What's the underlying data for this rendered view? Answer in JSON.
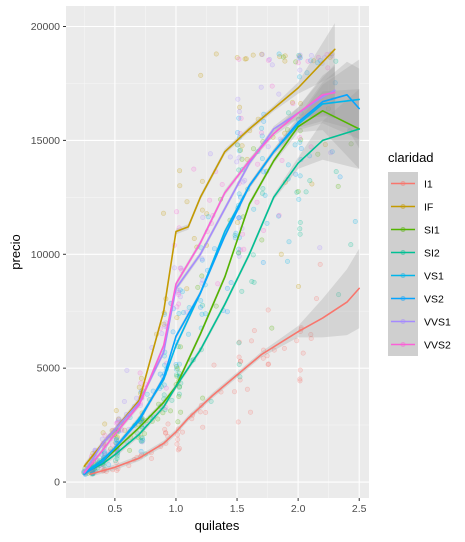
{
  "chart_data": {
    "type": "scatter",
    "title": "",
    "xlabel": "quilates",
    "ylabel": "precio",
    "xlim": [
      0.1,
      2.58
    ],
    "ylim": [
      -700,
      20900
    ],
    "x_ticks": [
      0.5,
      1.0,
      1.5,
      2.0,
      2.5
    ],
    "x_tick_labels": [
      "0.5",
      "1.0",
      "1.5",
      "2.0",
      "2.5"
    ],
    "y_ticks": [
      0,
      5000,
      10000,
      15000,
      20000
    ],
    "y_tick_labels": [
      "0",
      "5000",
      "10000",
      "15000",
      "20000"
    ],
    "grid": true,
    "panel_background": "#ebebeb",
    "legend_position": "right",
    "legend_title": "claridad",
    "overlay": "loess smooth lines with grey confidence bands over semi-transparent scatter points",
    "series": [
      {
        "name": "I1",
        "color": "#F8766D",
        "values": [
          [
            0.3,
            350
          ],
          [
            0.5,
            650
          ],
          [
            0.7,
            1050
          ],
          [
            0.9,
            1700
          ],
          [
            1.0,
            2200
          ],
          [
            1.1,
            2800
          ],
          [
            1.3,
            3800
          ],
          [
            1.5,
            4700
          ],
          [
            1.7,
            5600
          ],
          [
            2.0,
            6600
          ],
          [
            2.2,
            7200
          ],
          [
            2.4,
            7900
          ],
          [
            2.5,
            8500
          ]
        ]
      },
      {
        "name": "IF",
        "color": "#C49A00",
        "values": [
          [
            0.25,
            700
          ],
          [
            0.4,
            1700
          ],
          [
            0.5,
            2300
          ],
          [
            0.7,
            3600
          ],
          [
            0.9,
            7500
          ],
          [
            1.0,
            11000
          ],
          [
            1.1,
            11200
          ],
          [
            1.2,
            12500
          ],
          [
            1.4,
            14500
          ],
          [
            1.6,
            15500
          ],
          [
            1.8,
            16400
          ],
          [
            2.0,
            17300
          ],
          [
            2.3,
            19000
          ]
        ]
      },
      {
        "name": "SI1",
        "color": "#53B400",
        "values": [
          [
            0.25,
            400
          ],
          [
            0.4,
            900
          ],
          [
            0.5,
            1400
          ],
          [
            0.7,
            2400
          ],
          [
            0.9,
            3500
          ],
          [
            1.0,
            4200
          ],
          [
            1.2,
            6500
          ],
          [
            1.4,
            9000
          ],
          [
            1.6,
            12200
          ],
          [
            1.8,
            14100
          ],
          [
            2.0,
            15600
          ],
          [
            2.2,
            16300
          ],
          [
            2.5,
            15500
          ]
        ]
      },
      {
        "name": "SI2",
        "color": "#00C094",
        "values": [
          [
            0.25,
            400
          ],
          [
            0.4,
            800
          ],
          [
            0.5,
            1200
          ],
          [
            0.7,
            2100
          ],
          [
            0.9,
            3300
          ],
          [
            1.0,
            4200
          ],
          [
            1.2,
            5800
          ],
          [
            1.4,
            7800
          ],
          [
            1.6,
            10000
          ],
          [
            1.8,
            12500
          ],
          [
            2.0,
            14000
          ],
          [
            2.2,
            15000
          ],
          [
            2.5,
            15500
          ]
        ]
      },
      {
        "name": "VS1",
        "color": "#00B6EB",
        "values": [
          [
            0.25,
            400
          ],
          [
            0.4,
            1000
          ],
          [
            0.5,
            1500
          ],
          [
            0.7,
            2800
          ],
          [
            0.9,
            4500
          ],
          [
            1.0,
            6000
          ],
          [
            1.2,
            8300
          ],
          [
            1.4,
            11000
          ],
          [
            1.6,
            13000
          ],
          [
            1.8,
            14500
          ],
          [
            2.0,
            15700
          ],
          [
            2.2,
            16600
          ],
          [
            2.5,
            16800
          ]
        ]
      },
      {
        "name": "VS2",
        "color": "#06A4FF",
        "values": [
          [
            0.25,
            350
          ],
          [
            0.4,
            900
          ],
          [
            0.5,
            1500
          ],
          [
            0.7,
            2700
          ],
          [
            0.9,
            4600
          ],
          [
            1.0,
            6400
          ],
          [
            1.2,
            8300
          ],
          [
            1.4,
            10800
          ],
          [
            1.6,
            13000
          ],
          [
            1.8,
            14500
          ],
          [
            2.0,
            15800
          ],
          [
            2.2,
            16700
          ],
          [
            2.4,
            17000
          ],
          [
            2.5,
            16400
          ]
        ]
      },
      {
        "name": "VVS1",
        "color": "#A58AFF",
        "values": [
          [
            0.25,
            450
          ],
          [
            0.4,
            1700
          ],
          [
            0.5,
            2300
          ],
          [
            0.7,
            3500
          ],
          [
            0.9,
            5700
          ],
          [
            1.0,
            8500
          ],
          [
            1.2,
            10000
          ],
          [
            1.4,
            12000
          ],
          [
            1.6,
            14000
          ],
          [
            1.8,
            15500
          ],
          [
            2.0,
            16200
          ],
          [
            2.2,
            16900
          ],
          [
            2.3,
            17200
          ]
        ]
      },
      {
        "name": "VVS2",
        "color": "#FB61D7",
        "values": [
          [
            0.25,
            400
          ],
          [
            0.4,
            1400
          ],
          [
            0.5,
            2100
          ],
          [
            0.7,
            3400
          ],
          [
            0.9,
            6000
          ],
          [
            1.0,
            8700
          ],
          [
            1.2,
            10500
          ],
          [
            1.4,
            12700
          ],
          [
            1.6,
            14100
          ],
          [
            1.8,
            15300
          ],
          [
            2.0,
            16200
          ],
          [
            2.2,
            17000
          ],
          [
            2.3,
            17100
          ]
        ]
      }
    ]
  }
}
